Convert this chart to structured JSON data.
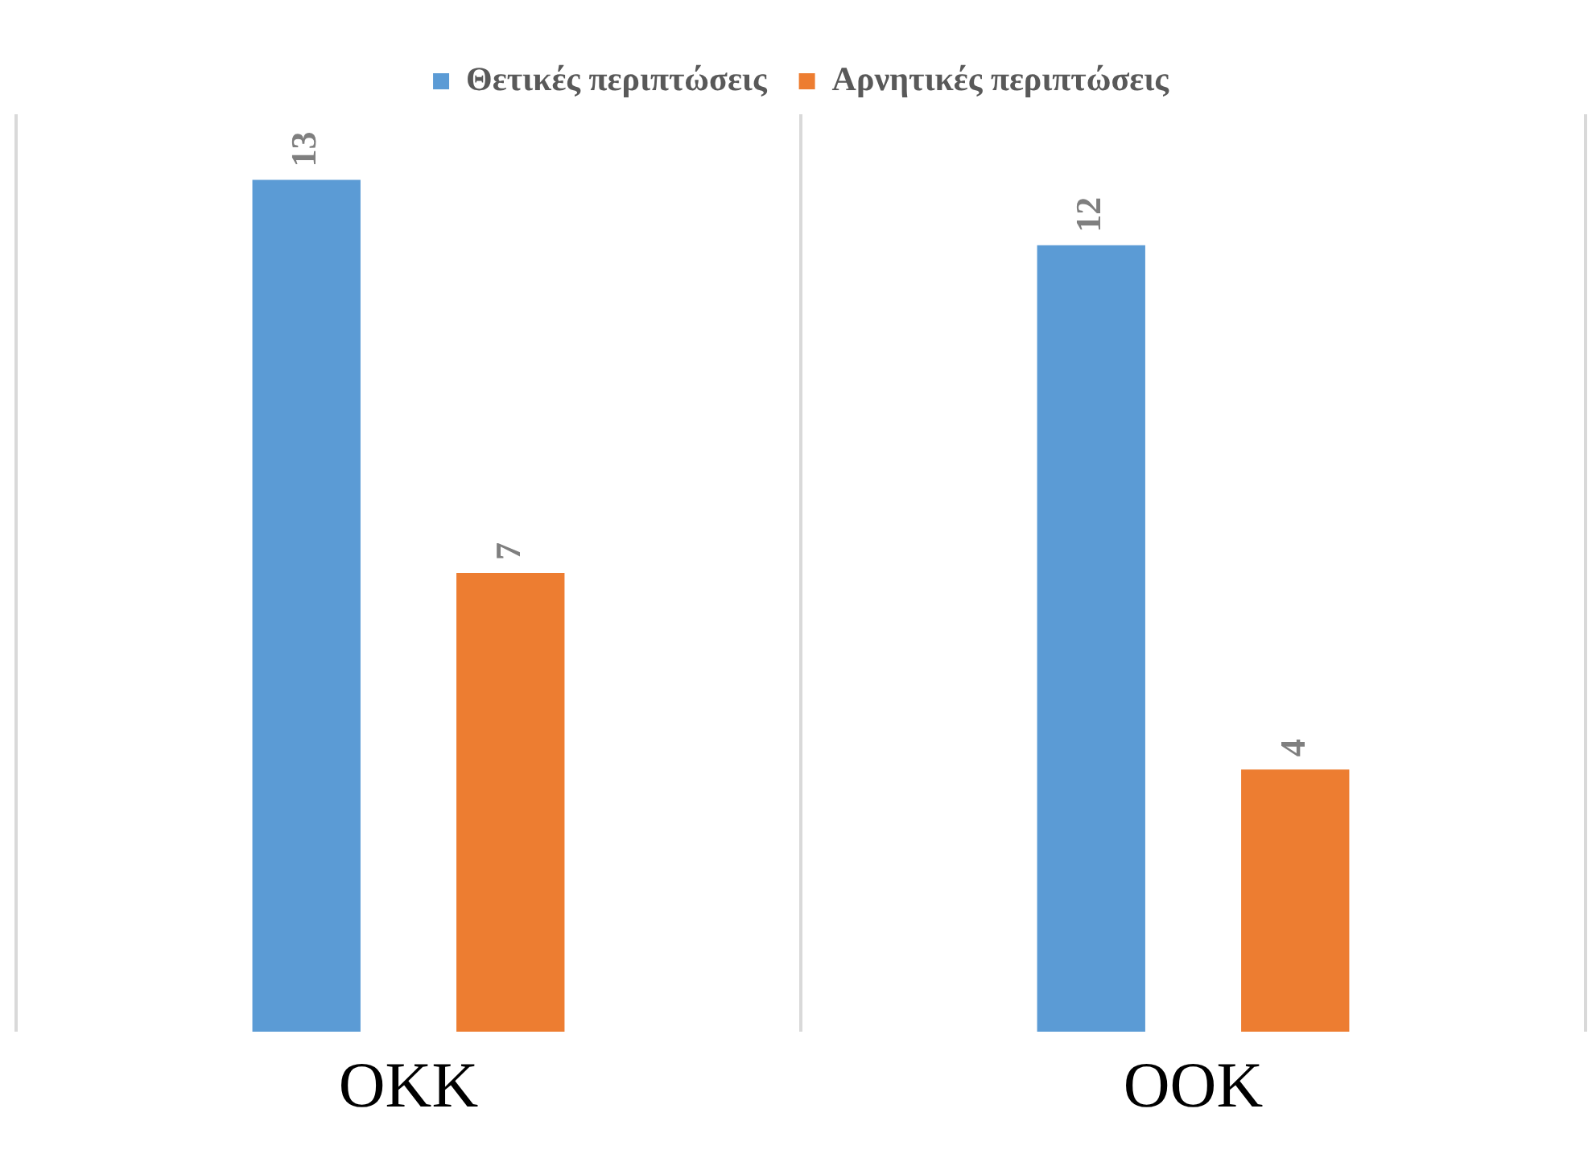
{
  "chart_data": {
    "type": "bar",
    "categories": [
      "ΟΚΚ",
      "ΟΟΚ"
    ],
    "series": [
      {
        "name": "Θετικές περιπτώσεις",
        "color": "#5b9bd5",
        "values": [
          13,
          12
        ]
      },
      {
        "name": "Αρνητικές περιπτώσεις",
        "color": "#ed7d31",
        "values": [
          7,
          4
        ]
      }
    ],
    "data_labels": true,
    "grid": "x",
    "legend": "top",
    "tick_labels": "x"
  }
}
